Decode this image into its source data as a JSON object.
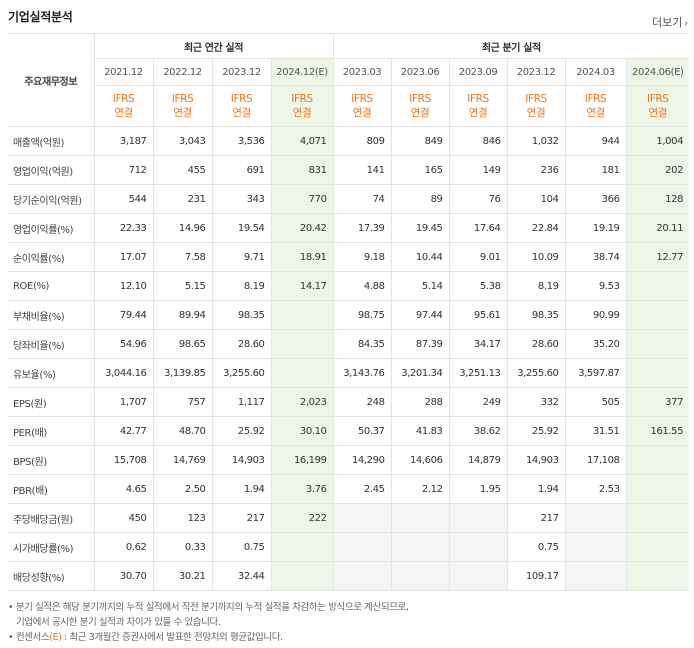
{
  "title": "기업실적분석",
  "more": "더보기",
  "header": {
    "row_label": "주요재무정보",
    "group_annual": "최근 연간 실적",
    "group_quarter": "최근 분기 실적",
    "periods": [
      "2021.12",
      "2022.12",
      "2023.12",
      "2024.12(E)",
      "2023.03",
      "2023.06",
      "2023.09",
      "2023.12",
      "2024.03",
      "2024.06(E)"
    ],
    "ifrs_line1": "IFRS",
    "ifrs_line2": "연결"
  },
  "rows": [
    {
      "label": "매출액(억원)",
      "values": [
        "3,187",
        "3,043",
        "3,536",
        "4,071",
        "809",
        "849",
        "846",
        "1,032",
        "944",
        "1,004"
      ]
    },
    {
      "label": "영업이익(억원)",
      "values": [
        "712",
        "455",
        "691",
        "831",
        "141",
        "165",
        "149",
        "236",
        "181",
        "202"
      ]
    },
    {
      "label": "당기순이익(억원)",
      "values": [
        "544",
        "231",
        "343",
        "770",
        "74",
        "89",
        "76",
        "104",
        "366",
        "128"
      ]
    },
    {
      "label": "영업이익률(%)",
      "values": [
        "22.33",
        "14.96",
        "19.54",
        "20.42",
        "17.39",
        "19.45",
        "17.64",
        "22.84",
        "19.19",
        "20.11"
      ]
    },
    {
      "label": "순이익률(%)",
      "values": [
        "17.07",
        "7.58",
        "9.71",
        "18.91",
        "9.18",
        "10.44",
        "9.01",
        "10.09",
        "38.74",
        "12.77"
      ]
    },
    {
      "label": "ROE(%)",
      "values": [
        "12.10",
        "5.15",
        "8.19",
        "14.17",
        "4.88",
        "5.14",
        "5.38",
        "8.19",
        "9.53",
        ""
      ]
    },
    {
      "label": "부채비율(%)",
      "values": [
        "79.44",
        "89.94",
        "98.35",
        "",
        "98.75",
        "97.44",
        "95.61",
        "98.35",
        "90.99",
        ""
      ]
    },
    {
      "label": "당좌비율(%)",
      "values": [
        "54.96",
        "98.65",
        "28.60",
        "",
        "84.35",
        "87.39",
        "34.17",
        "28.60",
        "35.20",
        ""
      ]
    },
    {
      "label": "유보율(%)",
      "values": [
        "3,044.16",
        "3,139.85",
        "3,255.60",
        "",
        "3,143.76",
        "3,201.34",
        "3,251.13",
        "3,255.60",
        "3,597.87",
        ""
      ]
    },
    {
      "label": "EPS(원)",
      "values": [
        "1,707",
        "757",
        "1,117",
        "2,023",
        "248",
        "288",
        "249",
        "332",
        "505",
        "377"
      ]
    },
    {
      "label": "PER(배)",
      "values": [
        "42.77",
        "48.70",
        "25.92",
        "30.10",
        "50.37",
        "41.83",
        "38.62",
        "25.92",
        "31.51",
        "161.55"
      ]
    },
    {
      "label": "BPS(원)",
      "values": [
        "15,708",
        "14,769",
        "14,903",
        "16,199",
        "14,290",
        "14,606",
        "14,879",
        "14,903",
        "17,108",
        ""
      ]
    },
    {
      "label": "PBR(배)",
      "values": [
        "4.65",
        "2.50",
        "1.94",
        "3.76",
        "2.45",
        "2.12",
        "1.95",
        "1.94",
        "2.53",
        ""
      ]
    },
    {
      "label": "주당배당금(원)",
      "values": [
        "450",
        "123",
        "217",
        "222",
        "",
        "",
        "",
        "217",
        "",
        ""
      ]
    },
    {
      "label": "시가배당률(%)",
      "values": [
        "0.62",
        "0.33",
        "0.75",
        "",
        "",
        "",
        "",
        "0.75",
        "",
        ""
      ]
    },
    {
      "label": "배당성향(%)",
      "values": [
        "30.70",
        "30.21",
        "32.44",
        "",
        "",
        "",
        "",
        "109.17",
        "",
        ""
      ]
    }
  ],
  "notes": {
    "line1": "분기 실적은 해당 분기까지의 누적 실적에서 직전 분기까지의 누적 실적을 차감하는 방식으로 계산되므로,",
    "line2": "기업에서 공시한 분기 실적과 차이가 있을 수 있습니다.",
    "line3_pre": "컨센서스",
    "line3_e": "(E)",
    "line3_post": ": 최근 3개월간 증권사에서 발표한 전망치의 평균값입니다."
  }
}
